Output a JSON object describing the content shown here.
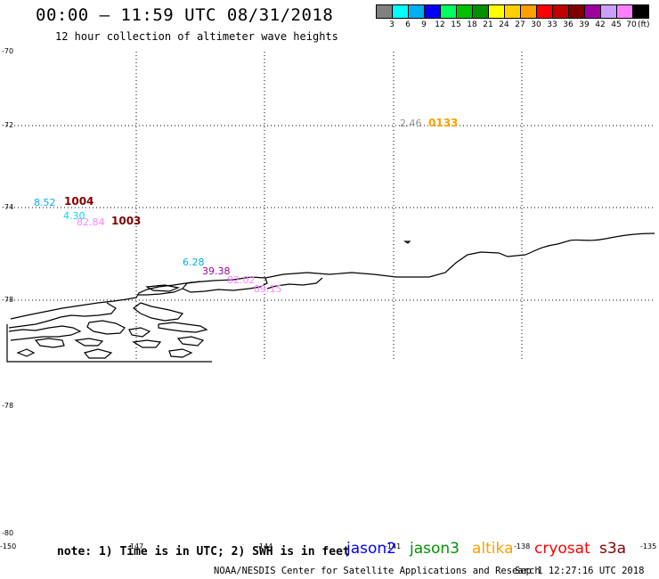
{
  "header": {
    "title": "00:00 – 11:59 UTC 08/31/2018",
    "subtitle": "12 hour collection of altimeter wave heights"
  },
  "legend": {
    "colors": [
      "#808080",
      "#00ffff",
      "#00b0f0",
      "#0000ff",
      "#00ff60",
      "#00c000",
      "#009000",
      "#ffff00",
      "#ffd000",
      "#ffa000",
      "#ff0000",
      "#c00000",
      "#800000",
      "#a000a0",
      "#c8a0ff",
      "#ff80ff",
      "#000000"
    ],
    "labels": [
      "3",
      "6",
      "9",
      "12",
      "15",
      "18",
      "21",
      "24",
      "27",
      "30",
      "33",
      "36",
      "39",
      "42",
      "45",
      "70"
    ],
    "unit": "(ft)"
  },
  "axes": {
    "lat_labels": [
      "-70",
      "-72",
      "-74",
      "-76",
      "-78",
      "-78",
      "-80"
    ],
    "lon_labels": [
      "-150",
      "-147",
      "-144",
      "-141",
      "-138",
      "-135"
    ]
  },
  "observations": [
    {
      "value": "2.46",
      "color": "#909090"
    },
    {
      "value": "8.52",
      "color": "#00b0f0"
    },
    {
      "value": "4.30",
      "color": "#00e0f0"
    },
    {
      "value": "82.84",
      "color": "#ff80ff"
    },
    {
      "value": "6.28",
      "color": "#00b0f0"
    },
    {
      "value": "39.38",
      "color": "#a000a0"
    },
    {
      "value": "82.02",
      "color": "#ff80ff"
    },
    {
      "value": "89.15",
      "color": "#ff80ff"
    }
  ],
  "observation_ids": [
    {
      "value": "0133",
      "color": "#ffa000"
    },
    {
      "value": "1004",
      "color": "#800000"
    },
    {
      "value": "1003",
      "color": "#800000"
    }
  ],
  "footer": {
    "note": "note: 1) Time is in UTC; 2) SWH is in feet",
    "satellites": [
      {
        "name": "jason2",
        "color": "#0000ff"
      },
      {
        "name": "jason3",
        "color": "#009000"
      },
      {
        "name": "altika",
        "color": "#ffa000"
      },
      {
        "name": "cryosat",
        "color": "#ff0000"
      },
      {
        "name": "s3a",
        "color": "#800000"
      }
    ],
    "credit": "NOAA/NESDIS Center for Satellite Applications and Research",
    "generated": "Sep  1 12:27:16 UTC 2018"
  }
}
